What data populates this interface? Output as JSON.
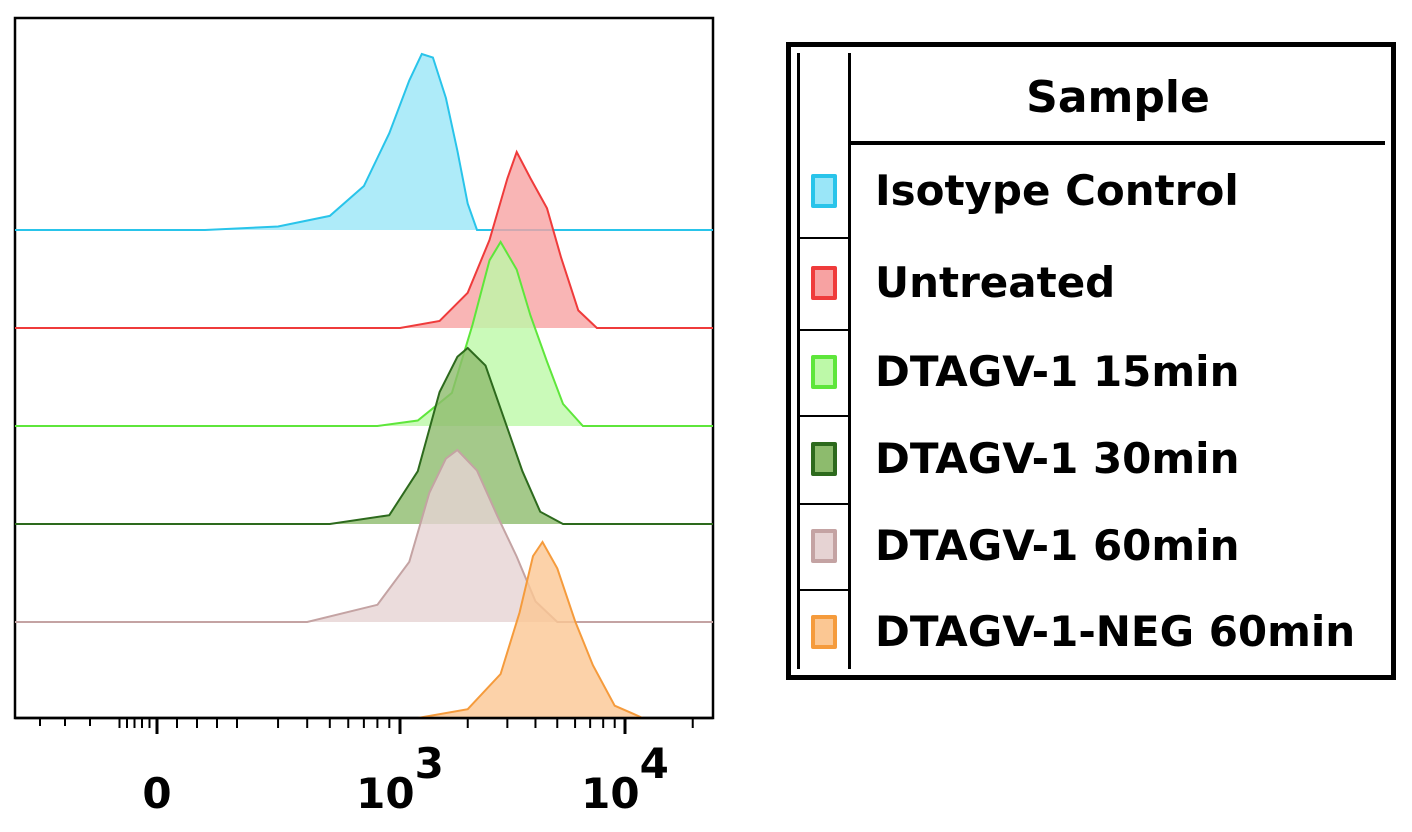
{
  "chart_data": {
    "type": "area",
    "chart_subtype": "stacked histogram (flow cytometry overlay)",
    "x_scale": "biexponential (log-like)",
    "x_ticks": [
      {
        "value": 0,
        "label": "0"
      },
      {
        "value": 1000,
        "label": "10",
        "superscript": "3"
      },
      {
        "value": 10000,
        "label": "10",
        "superscript": "4"
      }
    ],
    "xlim": [
      -300,
      25000
    ],
    "grid": false,
    "legend_position": "right",
    "legend_title": "Sample",
    "series": [
      {
        "name": "Isotype Control",
        "color": "#29c4ea",
        "fill": "#9ae6f8",
        "peak_x": 1300,
        "x_range": [
          120,
          2200
        ],
        "profile": [
          [
            120,
            0
          ],
          [
            300,
            0.02
          ],
          [
            500,
            0.08
          ],
          [
            700,
            0.25
          ],
          [
            900,
            0.55
          ],
          [
            1100,
            0.85
          ],
          [
            1250,
            1.0
          ],
          [
            1400,
            0.98
          ],
          [
            1600,
            0.75
          ],
          [
            1800,
            0.45
          ],
          [
            2000,
            0.15
          ],
          [
            2200,
            0
          ]
        ]
      },
      {
        "name": "Untreated",
        "color": "#ef3b3b",
        "fill": "#f7a2a2",
        "peak_x": 3300,
        "x_range": [
          1000,
          7500
        ],
        "profile": [
          [
            1000,
            0
          ],
          [
            1500,
            0.04
          ],
          [
            2000,
            0.2
          ],
          [
            2500,
            0.5
          ],
          [
            3000,
            0.85
          ],
          [
            3300,
            1.0
          ],
          [
            3800,
            0.85
          ],
          [
            4500,
            0.68
          ],
          [
            5200,
            0.4
          ],
          [
            6200,
            0.1
          ],
          [
            7500,
            0
          ]
        ]
      },
      {
        "name": "DTAGV-1 15min",
        "color": "#5ee63b",
        "fill": "#bdf9a8",
        "peak_x": 2900,
        "x_range": [
          800,
          6500
        ],
        "profile": [
          [
            800,
            0
          ],
          [
            1200,
            0.03
          ],
          [
            1700,
            0.18
          ],
          [
            2100,
            0.55
          ],
          [
            2500,
            0.9
          ],
          [
            2800,
            1.0
          ],
          [
            3300,
            0.85
          ],
          [
            3800,
            0.6
          ],
          [
            4500,
            0.35
          ],
          [
            5300,
            0.12
          ],
          [
            6500,
            0
          ]
        ]
      },
      {
        "name": "DTAGV-1 30min",
        "color": "#2d6a1d",
        "fill": "#8dbb6d",
        "peak_x": 1900,
        "x_range": [
          500,
          5300
        ],
        "profile": [
          [
            500,
            0
          ],
          [
            900,
            0.05
          ],
          [
            1200,
            0.3
          ],
          [
            1500,
            0.75
          ],
          [
            1800,
            0.95
          ],
          [
            2000,
            1.0
          ],
          [
            2400,
            0.9
          ],
          [
            2900,
            0.6
          ],
          [
            3500,
            0.3
          ],
          [
            4200,
            0.07
          ],
          [
            5300,
            0
          ]
        ]
      },
      {
        "name": "DTAGV-1 60min",
        "color": "#c4a3a3",
        "fill": "#e6d3d3",
        "peak_x": 1750,
        "x_range": [
          400,
          5000
        ],
        "profile": [
          [
            400,
            0
          ],
          [
            800,
            0.1
          ],
          [
            1100,
            0.35
          ],
          [
            1350,
            0.75
          ],
          [
            1600,
            0.95
          ],
          [
            1800,
            1.0
          ],
          [
            2200,
            0.88
          ],
          [
            2700,
            0.62
          ],
          [
            3300,
            0.38
          ],
          [
            4000,
            0.12
          ],
          [
            5000,
            0
          ]
        ]
      },
      {
        "name": "DTAGV-1-NEG 60min",
        "color": "#f59b3c",
        "fill": "#fbc793",
        "peak_x": 4400,
        "x_range": [
          1200,
          12000
        ],
        "profile": [
          [
            1200,
            0
          ],
          [
            2000,
            0.05
          ],
          [
            2800,
            0.25
          ],
          [
            3400,
            0.6
          ],
          [
            3900,
            0.92
          ],
          [
            4300,
            1.0
          ],
          [
            5000,
            0.85
          ],
          [
            6000,
            0.55
          ],
          [
            7200,
            0.3
          ],
          [
            9000,
            0.07
          ],
          [
            12000,
            0
          ]
        ]
      }
    ]
  },
  "legend": {
    "title": "Sample",
    "items": [
      {
        "label": "Isotype Control",
        "color": "#29c4ea",
        "fill": "#9ae6f8"
      },
      {
        "label": "Untreated",
        "color": "#ef3b3b",
        "fill": "#f7a2a2"
      },
      {
        "label": "DTAGV-1 15min",
        "color": "#5ee63b",
        "fill": "#bdf9a8"
      },
      {
        "label": "DTAGV-1 30min",
        "color": "#2d6a1d",
        "fill": "#8dbb6d"
      },
      {
        "label": "DTAGV-1 60min",
        "color": "#c4a3a3",
        "fill": "#e6d3d3"
      },
      {
        "label": "DTAGV-1-NEG 60min",
        "color": "#f59b3c",
        "fill": "#fbc793"
      }
    ]
  }
}
